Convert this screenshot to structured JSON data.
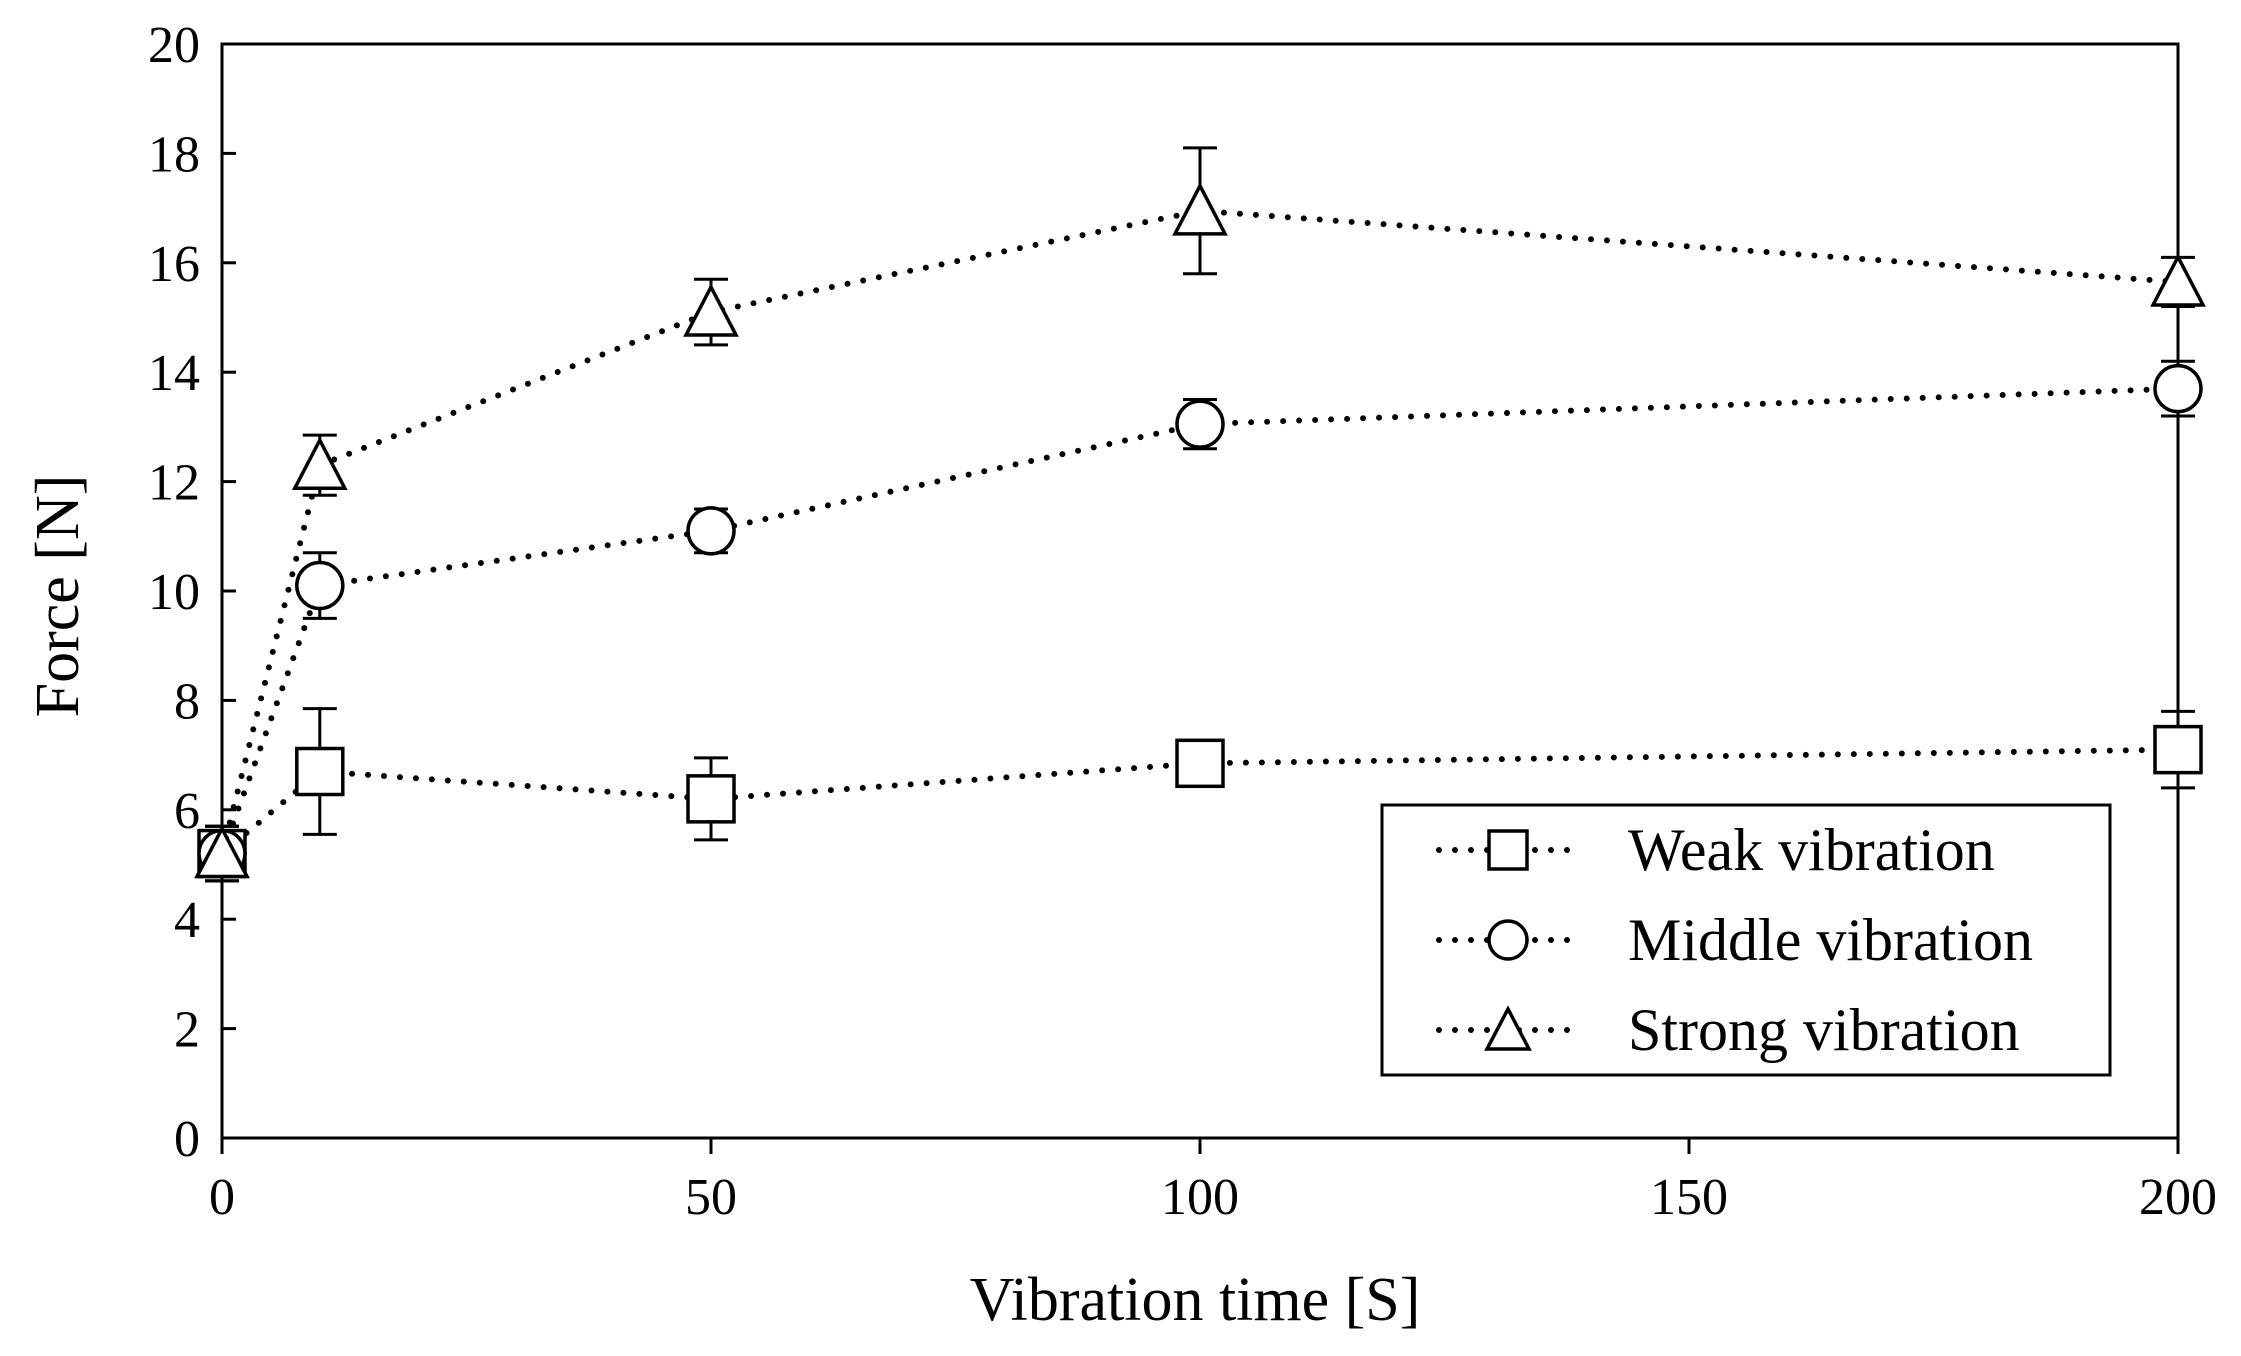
{
  "chart_data": {
    "type": "line",
    "title": "",
    "xlabel": "Vibration time [S]",
    "ylabel": "Force [N]",
    "xlim": [
      0,
      200
    ],
    "ylim": [
      0,
      20
    ],
    "xticks": [
      0,
      50,
      100,
      150,
      200
    ],
    "yticks": [
      0,
      2,
      4,
      6,
      8,
      10,
      12,
      14,
      16,
      18,
      20
    ],
    "grid": false,
    "legend_position": "bottom-right",
    "x": [
      0,
      10,
      50,
      100,
      200
    ],
    "series": [
      {
        "name": "Weak vibration",
        "marker": "square",
        "line_style": "dotted",
        "values": [
          5.2,
          6.7,
          6.2,
          6.85,
          7.1
        ],
        "error": [
          0.5,
          1.15,
          0.75,
          0.3,
          0.7
        ]
      },
      {
        "name": "Middle vibration",
        "marker": "circle",
        "line_style": "dotted",
        "values": [
          5.2,
          10.1,
          11.1,
          13.05,
          13.7
        ],
        "error": [
          0.5,
          0.6,
          0.4,
          0.45,
          0.5
        ]
      },
      {
        "name": "Strong vibration",
        "marker": "triangle",
        "line_style": "dotted",
        "values": [
          5.2,
          12.3,
          15.1,
          16.95,
          15.65
        ],
        "error": [
          0.5,
          0.55,
          0.6,
          1.15,
          0.45
        ]
      }
    ],
    "colors": {
      "line": "#000000",
      "marker_fill": "#ffffff",
      "background": "#ffffff"
    }
  }
}
